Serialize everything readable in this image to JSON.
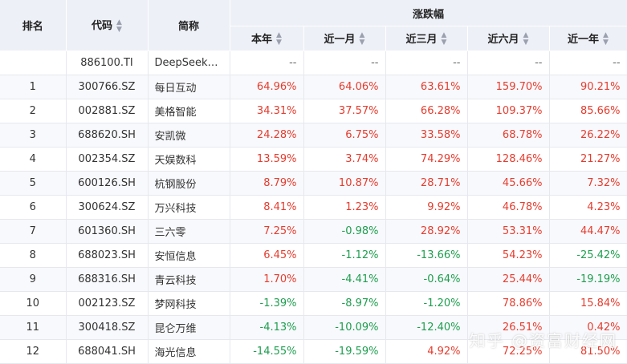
{
  "header": {
    "rank": "排名",
    "code": "代码",
    "name": "简称",
    "group": "涨跌幅",
    "ytd": "本年",
    "m1": "近一月",
    "m3": "近三月",
    "m6": "近六月",
    "y1": "近一年",
    "sort_glyph": "▲▼"
  },
  "index_row": {
    "rank": "",
    "code": "886100.TI",
    "name": "DeepSeek…",
    "ytd": "--",
    "m1": "--",
    "m3": "--",
    "m6": "--",
    "y1": "--"
  },
  "rows": [
    {
      "rank": "1",
      "code": "300766.SZ",
      "name": "每日互动",
      "ytd": "64.96%",
      "m1": "64.06%",
      "m3": "63.61%",
      "m6": "159.70%",
      "y1": "90.21%"
    },
    {
      "rank": "2",
      "code": "002881.SZ",
      "name": "美格智能",
      "ytd": "34.31%",
      "m1": "37.57%",
      "m3": "66.28%",
      "m6": "109.37%",
      "y1": "85.66%"
    },
    {
      "rank": "3",
      "code": "688620.SH",
      "name": "安凯微",
      "ytd": "24.28%",
      "m1": "6.75%",
      "m3": "33.58%",
      "m6": "68.78%",
      "y1": "26.22%"
    },
    {
      "rank": "4",
      "code": "002354.SZ",
      "name": "天娱数科",
      "ytd": "13.59%",
      "m1": "3.74%",
      "m3": "74.29%",
      "m6": "128.46%",
      "y1": "21.27%"
    },
    {
      "rank": "5",
      "code": "600126.SH",
      "name": "杭钢股份",
      "ytd": "8.79%",
      "m1": "10.87%",
      "m3": "28.71%",
      "m6": "45.66%",
      "y1": "7.32%"
    },
    {
      "rank": "6",
      "code": "300624.SZ",
      "name": "万兴科技",
      "ytd": "8.41%",
      "m1": "1.23%",
      "m3": "9.92%",
      "m6": "46.78%",
      "y1": "4.23%"
    },
    {
      "rank": "7",
      "code": "601360.SH",
      "name": "三六零",
      "ytd": "7.25%",
      "m1": "-0.98%",
      "m3": "28.92%",
      "m6": "53.31%",
      "y1": "44.47%"
    },
    {
      "rank": "8",
      "code": "688023.SH",
      "name": "安恒信息",
      "ytd": "6.45%",
      "m1": "-1.12%",
      "m3": "-13.66%",
      "m6": "54.23%",
      "y1": "-25.42%"
    },
    {
      "rank": "9",
      "code": "688316.SH",
      "name": "青云科技",
      "ytd": "1.70%",
      "m1": "-4.41%",
      "m3": "-0.64%",
      "m6": "25.44%",
      "y1": "-19.19%"
    },
    {
      "rank": "10",
      "code": "002123.SZ",
      "name": "梦网科技",
      "ytd": "-1.39%",
      "m1": "-8.97%",
      "m3": "-1.20%",
      "m6": "78.86%",
      "y1": "15.84%"
    },
    {
      "rank": "11",
      "code": "300418.SZ",
      "name": "昆仑万维",
      "ytd": "-4.13%",
      "m1": "-10.09%",
      "m3": "-12.40%",
      "m6": "26.51%",
      "y1": "0.42%"
    },
    {
      "rank": "12",
      "code": "688041.SH",
      "name": "海光信息",
      "ytd": "-14.55%",
      "m1": "-19.59%",
      "m3": "4.92%",
      "m6": "72.25%",
      "y1": "81.50%"
    }
  ],
  "watermark": "知乎 @资富财经网",
  "colors": {
    "up": "#e63c2e",
    "down": "#1e9e4f",
    "header_bg": "#eef0f7"
  }
}
